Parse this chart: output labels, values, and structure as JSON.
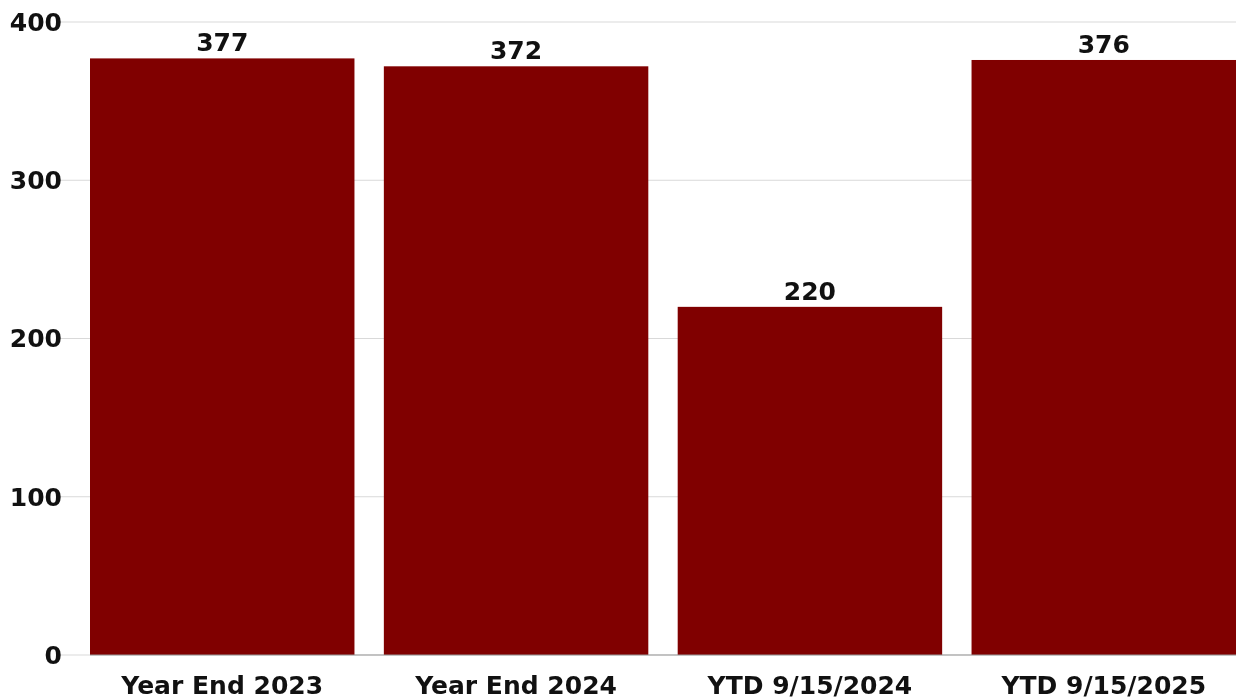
{
  "chart_data": {
    "type": "bar",
    "categories": [
      "Year End 2023",
      "Year End 2024",
      "YTD 9/15/2024",
      "YTD 9/15/2025"
    ],
    "values": [
      377,
      372,
      220,
      376
    ],
    "color": "#800000",
    "ylim": [
      0,
      400
    ],
    "yticks": [
      0,
      100,
      200,
      300,
      400
    ],
    "grid": "y",
    "data_labels": true
  }
}
